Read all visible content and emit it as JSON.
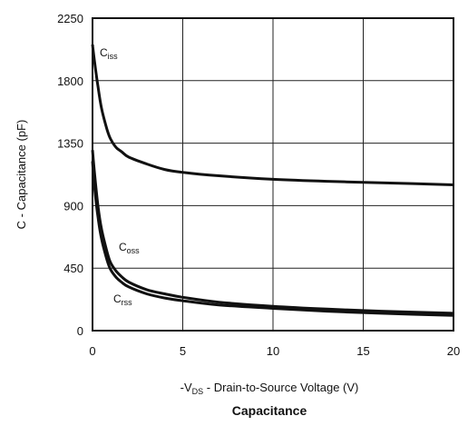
{
  "chart_data": {
    "type": "line",
    "title": "Capacitance",
    "xlabel": {
      "prefix": "-V",
      "sub": "DS",
      "suffix": " - Drain-to-Source Voltage (V)"
    },
    "ylabel": "C - Capacitance (pF)",
    "xlim": [
      0,
      20
    ],
    "ylim": [
      0,
      2250
    ],
    "xticks": [
      0,
      5,
      10,
      15,
      20
    ],
    "yticks": [
      0,
      450,
      900,
      1350,
      1800,
      2250
    ],
    "grid": true,
    "series": [
      {
        "name": {
          "main": "C",
          "sub": "iss"
        },
        "x": [
          0.0,
          0.1,
          0.3,
          0.5,
          0.8,
          1.0,
          1.3,
          1.6,
          2.0,
          3.0,
          4.0,
          5.0,
          7.0,
          10.0,
          13.0,
          16.0,
          20.0
        ],
        "y": [
          2060,
          1950,
          1760,
          1600,
          1450,
          1380,
          1320,
          1290,
          1250,
          1200,
          1160,
          1140,
          1115,
          1090,
          1075,
          1065,
          1050
        ]
      },
      {
        "name": {
          "main": "C",
          "sub": "oss"
        },
        "x": [
          0.0,
          0.1,
          0.3,
          0.5,
          0.8,
          1.0,
          1.3,
          1.6,
          2.0,
          3.0,
          4.0,
          5.0,
          7.0,
          10.0,
          13.0,
          16.0,
          20.0
        ],
        "y": [
          1300,
          1150,
          900,
          730,
          570,
          490,
          430,
          390,
          350,
          295,
          265,
          240,
          205,
          175,
          155,
          140,
          125
        ]
      },
      {
        "name": {
          "main": "C",
          "sub": "rss"
        },
        "x": [
          0.0,
          0.1,
          0.3,
          0.5,
          0.8,
          1.0,
          1.3,
          1.6,
          2.0,
          3.0,
          4.0,
          5.0,
          7.0,
          10.0,
          13.0,
          16.0,
          20.0
        ],
        "y": [
          1220,
          1050,
          820,
          660,
          510,
          440,
          385,
          350,
          315,
          265,
          235,
          215,
          185,
          160,
          140,
          125,
          110
        ]
      }
    ]
  }
}
